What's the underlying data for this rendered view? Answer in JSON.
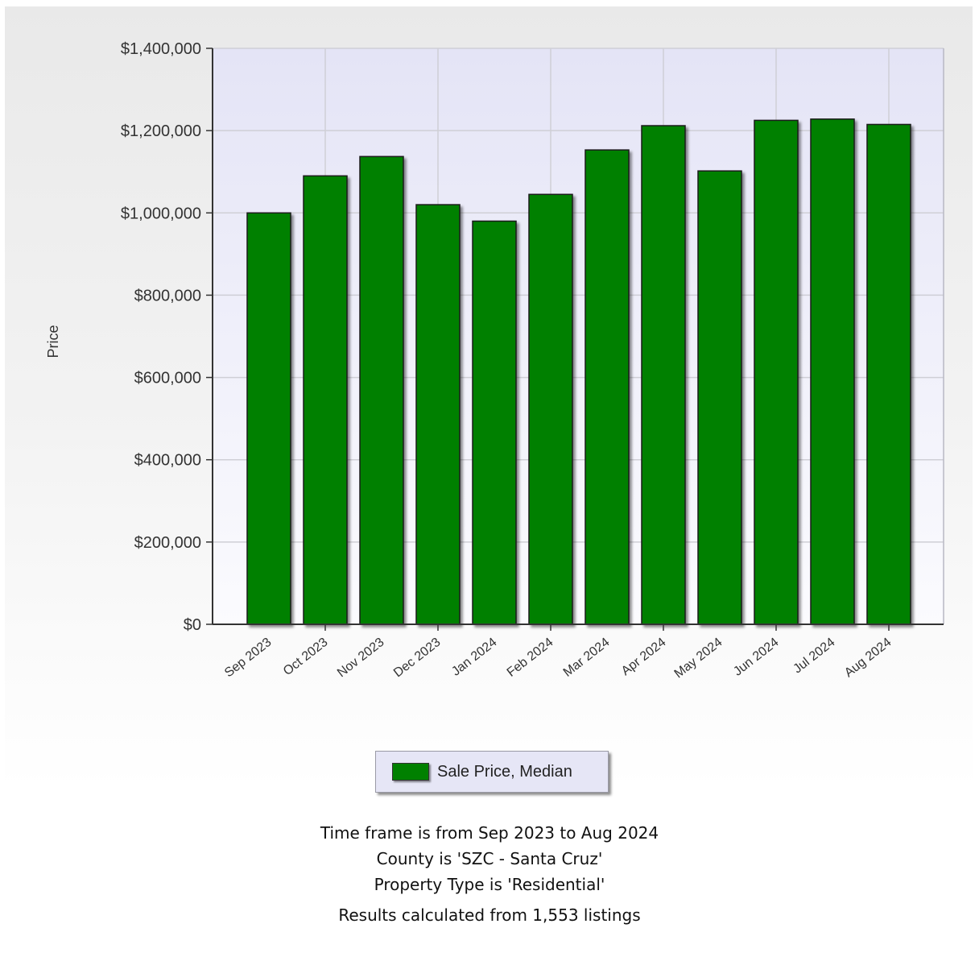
{
  "chart_data": {
    "type": "bar",
    "categories": [
      "Sep 2023",
      "Oct 2023",
      "Nov 2023",
      "Dec 2023",
      "Jan 2024",
      "Feb 2024",
      "Mar 2024",
      "Apr 2024",
      "May 2024",
      "Jun 2024",
      "Jul 2024",
      "Aug 2024"
    ],
    "series": [
      {
        "name": "Sale Price, Median",
        "color": "#008000",
        "values": [
          1000000,
          1090000,
          1137000,
          1020000,
          980000,
          1045000,
          1153000,
          1212000,
          1102000,
          1225000,
          1228000,
          1215000
        ]
      }
    ],
    "ylabel": "Price",
    "ylim": [
      0,
      1400000
    ],
    "yticks": [
      0,
      200000,
      400000,
      600000,
      800000,
      1000000,
      1200000,
      1400000
    ],
    "ytick_labels": [
      "$0",
      "$200,000",
      "$400,000",
      "$600,000",
      "$800,000",
      "$1,000,000",
      "$1,200,000",
      "$1,400,000"
    ],
    "grid": true,
    "legend_position": "bottom-center"
  },
  "legend": {
    "label": "Sale Price, Median",
    "color": "#008000"
  },
  "footer": {
    "timeframe": "Time frame is from Sep 2023 to Aug 2024",
    "county": "County is 'SZC - Santa Cruz'",
    "property_type": "Property Type is 'Residential'",
    "results": "Results calculated from 1,553 listings"
  }
}
